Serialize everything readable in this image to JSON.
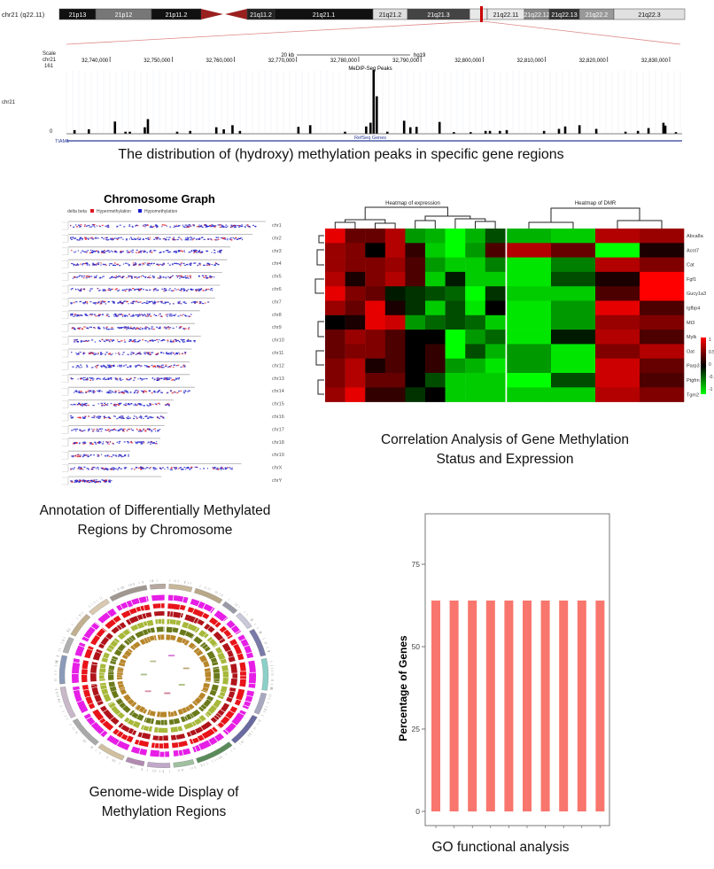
{
  "captions": {
    "browser": "The distribution of (hydroxy) methylation peaks in specific gene regions",
    "chromosome": [
      "Annotation of Differentially Methylated",
      "Regions by Chromosome"
    ],
    "heatmap": [
      "Correlation Analysis of Gene Methylation",
      "Status and Expression"
    ],
    "circos": [
      "Genome-wide Display of",
      "Methylation Regions"
    ],
    "go": "GO functional analysis"
  },
  "chart_data": [
    {
      "type": "bar",
      "subtype": "genome-browser-track",
      "ideogram": {
        "label": "chr21 (q22.11)",
        "bands": [
          "21p13",
          "21p12",
          "21p11.2",
          "21p11.1",
          "21q11.2",
          "21q21.1",
          "21q21.2",
          "21q21.3",
          "21q22.11",
          "21q22.12",
          "21q22.13",
          "21q22.2",
          "21q22.3"
        ],
        "highlight_band": "21q22.11",
        "highlight_color": "#cc0000"
      },
      "scale_label": "Scale",
      "scale_bar": "20 kb",
      "assembly": "hg19",
      "chrom": "chr21",
      "track_name": "MeDIP-Seq Peaks",
      "ylim": [
        0,
        161
      ],
      "ytick_labels": [
        "161",
        "0"
      ],
      "xlim": [
        32733000,
        32832000
      ],
      "xtick_labels": [
        "32,740,000",
        "32,750,000",
        "32,760,000",
        "32,770,000",
        "32,780,000",
        "32,790,000",
        "32,800,000",
        "32,810,000",
        "32,820,000",
        "32,830,000"
      ],
      "xticks": [
        32740000,
        32750000,
        32760000,
        32770000,
        32780000,
        32790000,
        32800000,
        32810000,
        32820000,
        32830000
      ],
      "peaks": [
        [
          32734300,
          9
        ],
        [
          32736600,
          11
        ],
        [
          32740800,
          30
        ],
        [
          32742500,
          5
        ],
        [
          32743200,
          5
        ],
        [
          32745600,
          16
        ],
        [
          32746100,
          36
        ],
        [
          32750800,
          5
        ],
        [
          32752900,
          7
        ],
        [
          32757100,
          16
        ],
        [
          32758300,
          11
        ],
        [
          32759700,
          21
        ],
        [
          32760900,
          7
        ],
        [
          32770300,
          17
        ],
        [
          32772200,
          21
        ],
        [
          32777800,
          5
        ],
        [
          32781200,
          18
        ],
        [
          32781900,
          27
        ],
        [
          32782400,
          157
        ],
        [
          32782900,
          92
        ],
        [
          32784600,
          5
        ],
        [
          32787300,
          32
        ],
        [
          32788300,
          16
        ],
        [
          32789300,
          17
        ],
        [
          32793000,
          29
        ],
        [
          32795300,
          4
        ],
        [
          32798000,
          4
        ],
        [
          32800400,
          7
        ],
        [
          32801100,
          7
        ],
        [
          32802700,
          7
        ],
        [
          32803800,
          9
        ],
        [
          32809800,
          7
        ],
        [
          32812200,
          12
        ],
        [
          32813200,
          18
        ],
        [
          32815500,
          21
        ],
        [
          32818200,
          12
        ],
        [
          32822900,
          5
        ],
        [
          32824900,
          7
        ],
        [
          32826600,
          14
        ],
        [
          32829000,
          27
        ],
        [
          32829300,
          20
        ],
        [
          32831000,
          4
        ]
      ],
      "gene_track": "RefSeq Genes",
      "gene": "TIAM1",
      "bar_color": "#000000"
    },
    {
      "type": "scatter",
      "subtype": "chromosome-graph",
      "title": "Chromosome Graph",
      "legend_title": "delta beta",
      "legend": [
        {
          "name": "Hypermethylation",
          "color": "#e0141e"
        },
        {
          "name": "Hypomethylation",
          "color": "#1a1ad0"
        }
      ],
      "legend_placement": "top-left",
      "chromosomes": [
        "chr1",
        "chr2",
        "chr3",
        "chr4",
        "chr5",
        "chr6",
        "chr7",
        "chr8",
        "chr9",
        "chr10",
        "chr11",
        "chr12",
        "chr13",
        "chr14",
        "chr15",
        "chr16",
        "chr17",
        "chr18",
        "chr19",
        "chrX",
        "chrY"
      ],
      "lengths_mb": [
        195,
        182,
        160,
        157,
        152,
        150,
        145,
        130,
        125,
        131,
        122,
        120,
        120,
        125,
        104,
        98,
        95,
        91,
        61,
        171,
        92
      ]
    },
    {
      "type": "heatmap",
      "panels": [
        {
          "title": "Heatmap of expression",
          "n_columns": 9
        },
        {
          "title": "Heatmap of DMR",
          "n_columns": 4
        }
      ],
      "rows": [
        "Abca8a",
        "Acot7",
        "Cat",
        "Fgf1",
        "Gucy1a3",
        "Igfbp4",
        "Mt3",
        "Mylk",
        "Oat",
        "Parp3",
        "Ptgfrn",
        "Tgm2"
      ],
      "expression": [
        [
          0.9,
          0.4,
          0.4,
          0.7,
          -0.6,
          -0.7,
          -1,
          -0.7,
          -0.3
        ],
        [
          0.6,
          0.5,
          0,
          0.7,
          0.2,
          -0.8,
          -1,
          -0.6,
          0.3
        ],
        [
          0.6,
          0.5,
          0.5,
          0.6,
          0.3,
          -0.6,
          -0.8,
          -0.8,
          -0.5
        ],
        [
          0.7,
          0.1,
          0.5,
          0.7,
          0.3,
          -0.8,
          -0.1,
          -0.8,
          -0.8
        ],
        [
          0.9,
          0.5,
          0.4,
          -0.1,
          -0.2,
          -0.3,
          -0.4,
          -1,
          -0.2
        ],
        [
          0.6,
          0.4,
          0.9,
          0.1,
          -0.2,
          -0.8,
          -0.3,
          -0.9,
          0
        ],
        [
          0,
          0.1,
          0.9,
          0.8,
          -0.6,
          -0.4,
          -0.3,
          -0.4,
          -0.8
        ],
        [
          0.4,
          0.6,
          0.5,
          0.3,
          0,
          0,
          -1,
          -0.6,
          -0.4
        ],
        [
          0.4,
          0.5,
          0.5,
          0.3,
          0,
          0.2,
          -1,
          -0.3,
          -0.7
        ],
        [
          0.5,
          0.7,
          0.1,
          0.3,
          0,
          0.2,
          -0.6,
          -0.7,
          -0.9
        ],
        [
          0.5,
          0.7,
          0.4,
          0.4,
          0,
          -0.3,
          -0.8,
          -0.8,
          -0.8
        ],
        [
          0.6,
          0.9,
          0.2,
          0.2,
          -0.2,
          0,
          -0.8,
          -0.8,
          -0.8
        ]
      ],
      "dmr": [
        [
          -0.7,
          -0.8,
          0.7,
          0.6
        ],
        [
          0.7,
          0.4,
          -1,
          0.1
        ],
        [
          -0.9,
          -0.5,
          0.7,
          0.5
        ],
        [
          -0.9,
          -0.3,
          0.1,
          1
        ],
        [
          -0.8,
          -0.8,
          0.3,
          1
        ],
        [
          -0.9,
          -0.6,
          0.9,
          0.3
        ],
        [
          -0.9,
          -0.6,
          0.6,
          0.5
        ],
        [
          -0.9,
          -0.1,
          0.7,
          0.3
        ],
        [
          -0.6,
          -0.9,
          0.5,
          0.7
        ],
        [
          -0.6,
          -0.9,
          0.8,
          0.4
        ],
        [
          -1,
          -0.3,
          0.8,
          0.3
        ],
        [
          -0.8,
          -0.8,
          0.7,
          0.5
        ]
      ],
      "color_scale": {
        "min": -1,
        "max": 1,
        "low": "#00ff00",
        "mid": "#000000",
        "high": "#ff0000"
      },
      "colorbar_labels": [
        "1",
        "0.5",
        "0",
        "-0.5",
        "-1"
      ]
    },
    {
      "type": "circos",
      "tracks": [
        "chromosome ideogram",
        "track 1",
        "track 2",
        "track 3",
        "track 4",
        "track 5",
        "track 6"
      ],
      "track_colors": [
        "#e61ee6",
        "#e8141a",
        "#b0141a",
        "#a8b83a",
        "#6b7a1a",
        "#b8862a"
      ],
      "n_chromosomes": 21
    },
    {
      "type": "bar",
      "ylabel": "Percentage of Genes",
      "ylim": [
        -4,
        98
      ],
      "yticks": [
        0,
        25,
        50,
        75
      ],
      "ytick_labels": [
        "0",
        "25",
        "50",
        "75"
      ],
      "values": [
        64,
        64,
        64,
        64,
        64,
        64,
        64,
        64,
        64,
        64
      ],
      "bar_color": "#f8766d",
      "grid": false
    }
  ]
}
